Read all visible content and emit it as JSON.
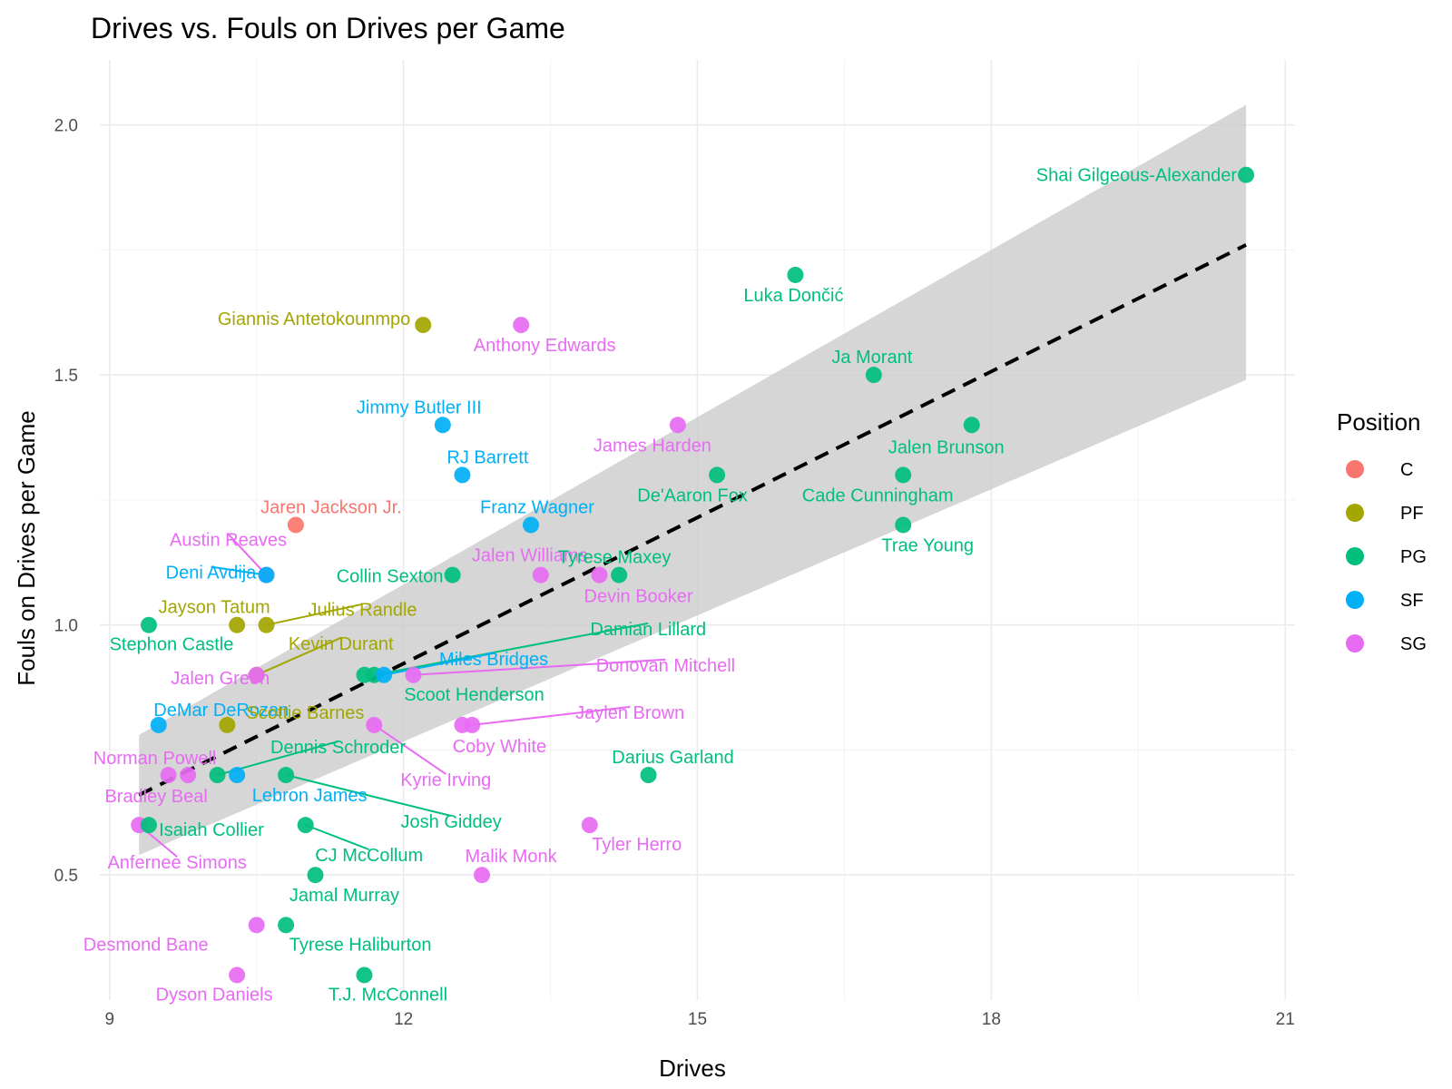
{
  "chart_data": {
    "type": "scatter",
    "title": "Drives vs. Fouls on Drives per Game",
    "xlabel": "Drives",
    "ylabel": "Fouls on Drives per Game",
    "xlim": [
      8.9,
      21.1
    ],
    "ylim": [
      0.25,
      2.13
    ],
    "x_ticks": [
      9,
      12,
      15,
      18,
      21
    ],
    "y_ticks": [
      0.5,
      1.0,
      1.5,
      2.0
    ],
    "x_tick_labels": [
      "9",
      "12",
      "15",
      "18",
      "21"
    ],
    "y_tick_labels": [
      "0.5",
      "1.0",
      "1.5",
      "2.0"
    ],
    "grid": true,
    "legend": {
      "title": "Position",
      "placement": "right",
      "entries": [
        {
          "name": "C",
          "color": "#F8766D"
        },
        {
          "name": "PF",
          "color": "#A3A500"
        },
        {
          "name": "PG",
          "color": "#00BF7D"
        },
        {
          "name": "SF",
          "color": "#00B0F6"
        },
        {
          "name": "SG",
          "color": "#E76BF3"
        }
      ]
    },
    "trend_line": {
      "style": "dashed",
      "color": "#000000",
      "x": [
        9.3,
        20.6
      ],
      "y": [
        0.66,
        1.76
      ]
    },
    "confidence_band": {
      "color": "#cccccc",
      "x": [
        9.3,
        20.6
      ],
      "upper": [
        0.78,
        2.04
      ],
      "lower": [
        0.54,
        1.49
      ]
    },
    "points": [
      {
        "player": "Shai Gilgeous-Alexander",
        "position": "PG",
        "x": 20.6,
        "y": 1.9
      },
      {
        "player": "Luka Dončić",
        "position": "PG",
        "x": 16.0,
        "y": 1.7
      },
      {
        "player": "Giannis Antetokounmpo",
        "position": "PF",
        "x": 12.2,
        "y": 1.6
      },
      {
        "player": "Anthony Edwards",
        "position": "SG",
        "x": 13.2,
        "y": 1.6
      },
      {
        "player": "Ja Morant",
        "position": "PG",
        "x": 16.8,
        "y": 1.5
      },
      {
        "player": "Jimmy Butler III",
        "position": "SF",
        "x": 12.4,
        "y": 1.4
      },
      {
        "player": "James Harden",
        "position": "SG",
        "x": 14.8,
        "y": 1.4
      },
      {
        "player": "Jalen Brunson",
        "position": "PG",
        "x": 17.8,
        "y": 1.4
      },
      {
        "player": "RJ Barrett",
        "position": "SF",
        "x": 12.6,
        "y": 1.3
      },
      {
        "player": "De'Aaron Fox",
        "position": "PG",
        "x": 15.2,
        "y": 1.3
      },
      {
        "player": "Cade Cunningham",
        "position": "PG",
        "x": 17.1,
        "y": 1.3
      },
      {
        "player": "Jaren Jackson Jr.",
        "position": "C",
        "x": 10.9,
        "y": 1.2
      },
      {
        "player": "Franz Wagner",
        "position": "SF",
        "x": 13.3,
        "y": 1.2
      },
      {
        "player": "Trae Young",
        "position": "PG",
        "x": 17.1,
        "y": 1.2
      },
      {
        "player": "Austin Reaves",
        "position": "SG",
        "x": 10.6,
        "y": 1.1
      },
      {
        "player": "Deni Avdija",
        "position": "SF",
        "x": 10.6,
        "y": 1.1
      },
      {
        "player": "Collin Sexton",
        "position": "PG",
        "x": 12.5,
        "y": 1.1
      },
      {
        "player": "Jalen Williams",
        "position": "SG",
        "x": 13.4,
        "y": 1.1
      },
      {
        "player": "Devin Booker",
        "position": "SG",
        "x": 14.0,
        "y": 1.1
      },
      {
        "player": "Tyrese Maxey",
        "position": "PG",
        "x": 14.2,
        "y": 1.1
      },
      {
        "player": "Stephon Castle",
        "position": "PG",
        "x": 9.4,
        "y": 1.0
      },
      {
        "player": "Jayson Tatum",
        "position": "PF",
        "x": 10.3,
        "y": 1.0
      },
      {
        "player": "Julius Randle",
        "position": "PF",
        "x": 10.6,
        "y": 1.0
      },
      {
        "player": "Kevin Durant",
        "position": "PF",
        "x": 10.5,
        "y": 0.9
      },
      {
        "player": "Jalen Green",
        "position": "SG",
        "x": 10.5,
        "y": 0.9
      },
      {
        "player": "Scoot Henderson",
        "position": "PG",
        "x": 11.6,
        "y": 0.9
      },
      {
        "player": "Damian Lillard",
        "position": "PG",
        "x": 11.7,
        "y": 0.9
      },
      {
        "player": "Miles Bridges",
        "position": "SF",
        "x": 11.8,
        "y": 0.9
      },
      {
        "player": "Donovan Mitchell",
        "position": "SG",
        "x": 12.1,
        "y": 0.9
      },
      {
        "player": "DeMar DeRozan",
        "position": "SF",
        "x": 9.5,
        "y": 0.8
      },
      {
        "player": "Scottie Barnes",
        "position": "PF",
        "x": 10.2,
        "y": 0.8
      },
      {
        "player": "Kyrie Irving",
        "position": "SG",
        "x": 11.7,
        "y": 0.8
      },
      {
        "player": "Coby White",
        "position": "SG",
        "x": 12.6,
        "y": 0.8
      },
      {
        "player": "Jaylen Brown",
        "position": "SG",
        "x": 12.7,
        "y": 0.8
      },
      {
        "player": "Norman Powell",
        "position": "SG",
        "x": 9.6,
        "y": 0.7
      },
      {
        "player": "Bradley Beal",
        "position": "SG",
        "x": 9.8,
        "y": 0.7
      },
      {
        "player": "Dennis Schroder",
        "position": "PG",
        "x": 10.1,
        "y": 0.7
      },
      {
        "player": "Lebron James",
        "position": "SF",
        "x": 10.3,
        "y": 0.7
      },
      {
        "player": "Josh Giddey",
        "position": "PG",
        "x": 10.8,
        "y": 0.7
      },
      {
        "player": "Darius Garland",
        "position": "PG",
        "x": 14.5,
        "y": 0.7
      },
      {
        "player": "Anfernee Simons",
        "position": "SG",
        "x": 9.3,
        "y": 0.6
      },
      {
        "player": "Isaiah Collier",
        "position": "PG",
        "x": 9.4,
        "y": 0.6
      },
      {
        "player": "CJ McCollum",
        "position": "PG",
        "x": 11.0,
        "y": 0.6
      },
      {
        "player": "Tyler Herro",
        "position": "SG",
        "x": 13.9,
        "y": 0.6
      },
      {
        "player": "Jamal Murray",
        "position": "PG",
        "x": 11.1,
        "y": 0.5
      },
      {
        "player": "Malik Monk",
        "position": "SG",
        "x": 12.8,
        "y": 0.5
      },
      {
        "player": "Desmond Bane",
        "position": "SG",
        "x": 10.5,
        "y": 0.4
      },
      {
        "player": "Tyrese Haliburton",
        "position": "PG",
        "x": 10.8,
        "y": 0.4
      },
      {
        "player": "Dyson Daniels",
        "position": "SG",
        "x": 10.3,
        "y": 0.3
      },
      {
        "player": "T.J. McConnell",
        "position": "PG",
        "x": 11.6,
        "y": 0.3
      }
    ]
  }
}
